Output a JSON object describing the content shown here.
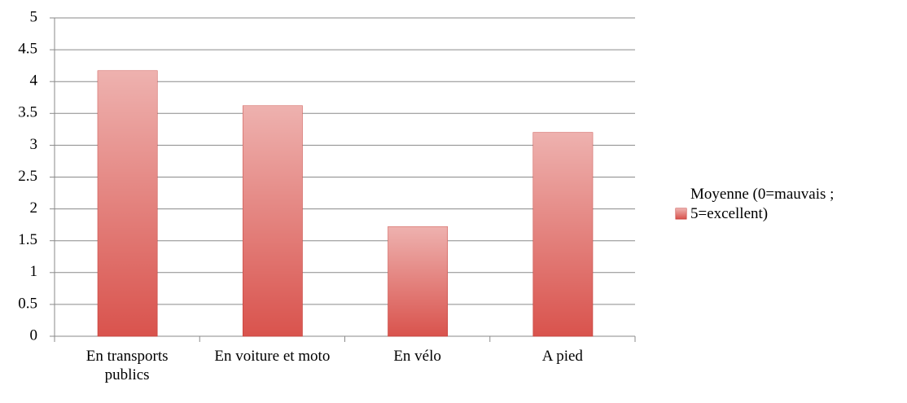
{
  "chart_data": {
    "type": "bar",
    "categories": [
      "En transports publics",
      "En voiture et moto",
      "En vélo",
      "A pied"
    ],
    "series": [
      {
        "name": "Moyenne (0=mauvais ; 5=excellent)",
        "color": "#d9534d",
        "values": [
          4.17,
          3.62,
          1.72,
          3.2
        ]
      }
    ],
    "ylim": [
      0,
      5
    ],
    "yticks": [
      0,
      0.5,
      1,
      1.5,
      2,
      2.5,
      3,
      3.5,
      4,
      4.5,
      5
    ],
    "grid": true,
    "legend": "right"
  }
}
